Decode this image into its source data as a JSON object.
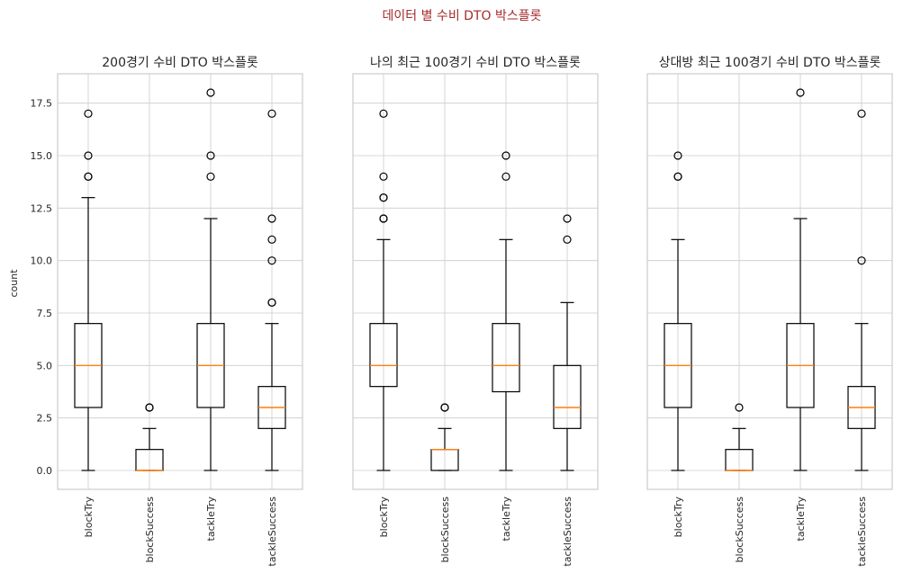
{
  "chart_data": {
    "type": "box",
    "suptitle": "데이터 별 수비 DTO 박스플롯",
    "ylabel": "count",
    "ylim": [
      -0.9,
      18.9
    ],
    "yticks": [
      0.0,
      2.5,
      5.0,
      7.5,
      10.0,
      12.5,
      15.0,
      17.5
    ],
    "ytick_labels": [
      "0.0",
      "2.5",
      "5.0",
      "7.5",
      "10.0",
      "12.5",
      "15.0",
      "17.5"
    ],
    "grid": true,
    "colors": {
      "box": "#000000",
      "median": "#ff7f0e",
      "grid": "#cccccc",
      "suptitle": "#a52a2a"
    },
    "panels": [
      {
        "title": "200경기 수비 DTO 박스플롯",
        "categories": [
          "blockTry",
          "blockSuccess",
          "tackleTry",
          "tackleSuccess"
        ],
        "boxes": [
          {
            "whislo": 0,
            "q1": 3,
            "med": 5,
            "q3": 7,
            "whishi": 13,
            "fliers": [
              14,
              14,
              15,
              17
            ]
          },
          {
            "whislo": 0,
            "q1": 0,
            "med": 0,
            "q3": 1,
            "whishi": 2,
            "fliers": [
              3,
              3
            ]
          },
          {
            "whislo": 0,
            "q1": 3,
            "med": 5,
            "q3": 7,
            "whishi": 12,
            "fliers": [
              14,
              15,
              18
            ]
          },
          {
            "whislo": 0,
            "q1": 2,
            "med": 3,
            "q3": 4,
            "whishi": 7,
            "fliers": [
              8,
              8,
              10,
              11,
              12,
              17
            ]
          }
        ]
      },
      {
        "title": "나의 최근 100경기 수비 DTO 박스플롯",
        "categories": [
          "blockTry",
          "blockSuccess",
          "tackleTry",
          "tackleSuccess"
        ],
        "boxes": [
          {
            "whislo": 0,
            "q1": 4,
            "med": 5,
            "q3": 7,
            "whishi": 11,
            "fliers": [
              12,
              12,
              13,
              13,
              14,
              17
            ]
          },
          {
            "whislo": 0,
            "q1": 0,
            "med": 1,
            "q3": 1,
            "whishi": 2,
            "fliers": [
              3,
              3
            ]
          },
          {
            "whislo": 0,
            "q1": 3.75,
            "med": 5,
            "q3": 7,
            "whishi": 11,
            "fliers": [
              14,
              15
            ]
          },
          {
            "whislo": 0,
            "q1": 2,
            "med": 3,
            "q3": 5,
            "whishi": 8,
            "fliers": [
              11,
              12
            ]
          }
        ]
      },
      {
        "title": "상대방 최근 100경기 수비 DTO 박스플롯",
        "categories": [
          "blockTry",
          "blockSuccess",
          "tackleTry",
          "tackleSuccess"
        ],
        "boxes": [
          {
            "whislo": 0,
            "q1": 3,
            "med": 5,
            "q3": 7,
            "whishi": 11,
            "fliers": [
              14,
              14,
              15
            ]
          },
          {
            "whislo": 0,
            "q1": 0,
            "med": 0,
            "q3": 1,
            "whishi": 2,
            "fliers": [
              3
            ]
          },
          {
            "whislo": 0,
            "q1": 3,
            "med": 5,
            "q3": 7,
            "whishi": 12,
            "fliers": [
              18
            ]
          },
          {
            "whislo": 0,
            "q1": 2,
            "med": 3,
            "q3": 4,
            "whishi": 7,
            "fliers": [
              10,
              17
            ]
          }
        ]
      }
    ]
  }
}
